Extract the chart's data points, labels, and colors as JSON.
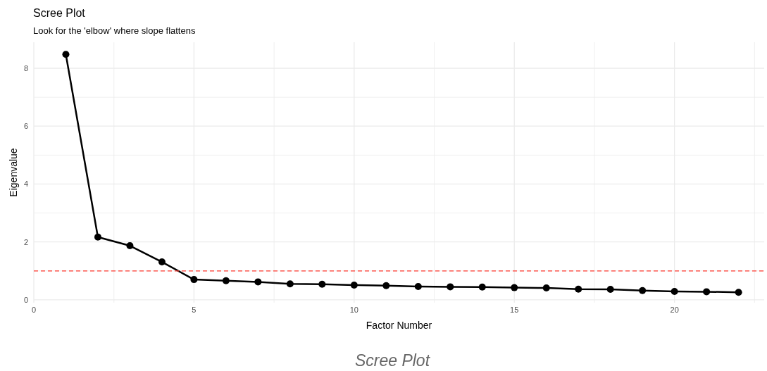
{
  "chart_data": {
    "type": "line",
    "title": "Scree Plot",
    "subtitle": "Look for the 'elbow' where slope flattens",
    "xlabel": "Factor Number",
    "ylabel": "Eigenvalue",
    "annotations": [
      "Scree Plot"
    ],
    "x": [
      1,
      2,
      3,
      4,
      5,
      6,
      7,
      8,
      9,
      10,
      11,
      12,
      13,
      14,
      15,
      16,
      17,
      18,
      19,
      20,
      21,
      22
    ],
    "series": [
      {
        "color": "#000000",
        "values": [
          8.48,
          2.17,
          1.87,
          1.31,
          0.7,
          0.66,
          0.62,
          0.55,
          0.54,
          0.51,
          0.49,
          0.46,
          0.45,
          0.44,
          0.42,
          0.41,
          0.37,
          0.36,
          0.32,
          0.29,
          0.28,
          0.26
        ]
      }
    ],
    "xlim": [
      0,
      22.8
    ],
    "ylim": [
      -0.1,
      8.9
    ],
    "xticks": [
      0,
      {
        "value": 2.5,
        "label": null
      },
      5,
      {
        "value": 7.5,
        "label": null
      },
      10,
      {
        "value": 12.5,
        "label": null
      },
      15,
      {
        "value": 17.5,
        "label": null
      },
      20,
      {
        "value": 22.5,
        "label": null
      }
    ],
    "yticks": [
      0,
      {
        "value": 1,
        "label": null
      },
      2,
      {
        "value": 3,
        "label": null
      },
      4,
      {
        "value": 5,
        "label": null
      },
      6,
      {
        "value": 7,
        "label": null
      },
      8
    ],
    "ref_lines": [
      {
        "axis": "y",
        "value": 1,
        "color": "#ff3b30",
        "line_style": "dashed"
      }
    ],
    "grid": true,
    "marker": "circle",
    "line_style": "solid"
  }
}
